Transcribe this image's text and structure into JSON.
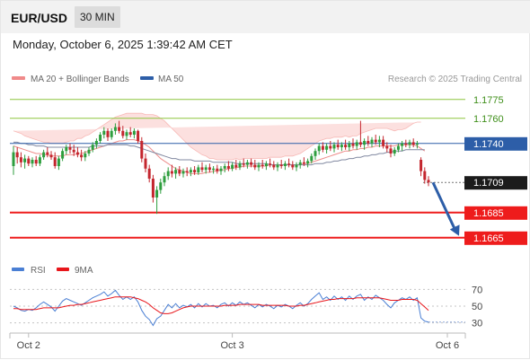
{
  "header": {
    "symbol": "EUR/USD",
    "interval": "30 MIN"
  },
  "timestamp": "Monday, October 6, 2025 1:39:42 AM CET",
  "legend": [
    {
      "label": "MA 20 + Bollinger Bands",
      "color": "#f08a8a"
    },
    {
      "label": "MA 50",
      "color": "#2d5ea8"
    }
  ],
  "copyright": "Research © 2025 Trading Central",
  "rsi_legend": [
    {
      "label": "RSI",
      "color": "#4a7fd4"
    },
    {
      "label": "9MA",
      "color": "#e8161b"
    }
  ],
  "colors": {
    "up": "#2e9e3e",
    "down": "#c4262e",
    "support": "#ee1c1c",
    "resistance": "#8dc63f",
    "current": "#2d5ea8",
    "arrow": "#2d5ea8"
  },
  "chart_data": {
    "type": "candlestick",
    "ylim": [
      1.1652,
      1.1782
    ],
    "levels": [
      {
        "value": 1.1775,
        "label": "1.1775",
        "kind": "resistance"
      },
      {
        "value": 1.176,
        "label": "1.1760",
        "kind": "resistance"
      },
      {
        "value": 1.174,
        "label": "1.1740",
        "kind": "pivot"
      },
      {
        "value": 1.1709,
        "label": "1.1709",
        "kind": "last"
      },
      {
        "value": 1.1685,
        "label": "1.1685",
        "kind": "support"
      },
      {
        "value": 1.1665,
        "label": "1.1665",
        "kind": "support"
      }
    ],
    "x_ticks": [
      {
        "label": "Oct 2",
        "index": 4
      },
      {
        "label": "Oct 3",
        "index": 58
      },
      {
        "label": "Oct 6",
        "index": 115
      }
    ],
    "candles": [
      [
        1.1722,
        1.1738,
        1.1715,
        1.1733
      ],
      [
        1.1733,
        1.1737,
        1.1724,
        1.1729
      ],
      [
        1.1729,
        1.1733,
        1.1721,
        1.1725
      ],
      [
        1.1725,
        1.1731,
        1.172,
        1.1728
      ],
      [
        1.1728,
        1.173,
        1.1722,
        1.1724
      ],
      [
        1.1724,
        1.1729,
        1.1721,
        1.1727
      ],
      [
        1.1727,
        1.173,
        1.1722,
        1.1724
      ],
      [
        1.1724,
        1.1731,
        1.1722,
        1.1729
      ],
      [
        1.1729,
        1.1735,
        1.1727,
        1.1733
      ],
      [
        1.1733,
        1.1737,
        1.1729,
        1.1731
      ],
      [
        1.1731,
        1.1734,
        1.1727,
        1.1729
      ],
      [
        1.1729,
        1.1733,
        1.172,
        1.1722
      ],
      [
        1.1722,
        1.173,
        1.1719,
        1.1728
      ],
      [
        1.1728,
        1.1736,
        1.1726,
        1.1734
      ],
      [
        1.1734,
        1.1739,
        1.1731,
        1.1737
      ],
      [
        1.1737,
        1.174,
        1.1732,
        1.1735
      ],
      [
        1.1735,
        1.1739,
        1.173,
        1.1733
      ],
      [
        1.1733,
        1.1737,
        1.1729,
        1.1731
      ],
      [
        1.1731,
        1.1735,
        1.1726,
        1.1729
      ],
      [
        1.1729,
        1.1734,
        1.1726,
        1.1732
      ],
      [
        1.1732,
        1.1737,
        1.173,
        1.1735
      ],
      [
        1.1735,
        1.1741,
        1.1733,
        1.1739
      ],
      [
        1.1739,
        1.1744,
        1.1736,
        1.1742
      ],
      [
        1.1742,
        1.1749,
        1.174,
        1.1747
      ],
      [
        1.1747,
        1.1753,
        1.1744,
        1.175
      ],
      [
        1.175,
        1.1752,
        1.1742,
        1.1745
      ],
      [
        1.1745,
        1.1752,
        1.1743,
        1.175
      ],
      [
        1.175,
        1.1756,
        1.1747,
        1.1753
      ],
      [
        1.1753,
        1.1758,
        1.1748,
        1.175
      ],
      [
        1.175,
        1.1754,
        1.1744,
        1.1746
      ],
      [
        1.1746,
        1.1751,
        1.1743,
        1.1749
      ],
      [
        1.1749,
        1.1753,
        1.1745,
        1.1747
      ],
      [
        1.1747,
        1.1752,
        1.1744,
        1.175
      ],
      [
        1.175,
        1.1751,
        1.174,
        1.1742
      ],
      [
        1.1742,
        1.1745,
        1.1725,
        1.1728
      ],
      [
        1.1728,
        1.1732,
        1.1717,
        1.172
      ],
      [
        1.172,
        1.1723,
        1.1709,
        1.1712
      ],
      [
        1.1712,
        1.1715,
        1.1693,
        1.1697
      ],
      [
        1.1697,
        1.1706,
        1.1684,
        1.1703
      ],
      [
        1.1703,
        1.1712,
        1.17,
        1.1709
      ],
      [
        1.1709,
        1.1717,
        1.1706,
        1.1714
      ],
      [
        1.1714,
        1.1721,
        1.1711,
        1.1718
      ],
      [
        1.1718,
        1.1723,
        1.1713,
        1.1716
      ],
      [
        1.1716,
        1.1721,
        1.1712,
        1.1719
      ],
      [
        1.1719,
        1.1722,
        1.1714,
        1.1716
      ],
      [
        1.1716,
        1.172,
        1.1713,
        1.1718
      ],
      [
        1.1718,
        1.1721,
        1.1714,
        1.1717
      ],
      [
        1.1717,
        1.1721,
        1.1714,
        1.1719
      ],
      [
        1.1719,
        1.1722,
        1.1715,
        1.1717
      ],
      [
        1.1717,
        1.1723,
        1.1715,
        1.1721
      ],
      [
        1.1721,
        1.1725,
        1.1717,
        1.1719
      ],
      [
        1.1719,
        1.1723,
        1.1716,
        1.1721
      ],
      [
        1.1721,
        1.1724,
        1.1717,
        1.1719
      ],
      [
        1.1719,
        1.1722,
        1.1716,
        1.172
      ],
      [
        1.172,
        1.1723,
        1.1716,
        1.1718
      ],
      [
        1.1718,
        1.1722,
        1.1715,
        1.172
      ],
      [
        1.172,
        1.1724,
        1.1717,
        1.1722
      ],
      [
        1.1722,
        1.1726,
        1.1718,
        1.172
      ],
      [
        1.172,
        1.1725,
        1.1718,
        1.1723
      ],
      [
        1.1723,
        1.1727,
        1.1719,
        1.1721
      ],
      [
        1.1721,
        1.1726,
        1.1719,
        1.1724
      ],
      [
        1.1724,
        1.1728,
        1.1721,
        1.1723
      ],
      [
        1.1723,
        1.1727,
        1.172,
        1.1725
      ],
      [
        1.1725,
        1.1728,
        1.1721,
        1.1723
      ],
      [
        1.1723,
        1.1727,
        1.1719,
        1.1721
      ],
      [
        1.1721,
        1.1725,
        1.1718,
        1.1723
      ],
      [
        1.1723,
        1.1727,
        1.172,
        1.1722
      ],
      [
        1.1722,
        1.1726,
        1.1719,
        1.1724
      ],
      [
        1.1724,
        1.1728,
        1.1721,
        1.1723
      ],
      [
        1.1723,
        1.1726,
        1.1719,
        1.1721
      ],
      [
        1.1721,
        1.1725,
        1.1718,
        1.1723
      ],
      [
        1.1723,
        1.1727,
        1.172,
        1.1722
      ],
      [
        1.1722,
        1.1726,
        1.1719,
        1.1724
      ],
      [
        1.1724,
        1.1728,
        1.1721,
        1.1723
      ],
      [
        1.1723,
        1.1726,
        1.1719,
        1.1721
      ],
      [
        1.1721,
        1.1725,
        1.1718,
        1.1723
      ],
      [
        1.1723,
        1.1727,
        1.172,
        1.1725
      ],
      [
        1.1725,
        1.1729,
        1.1722,
        1.1724
      ],
      [
        1.1724,
        1.1728,
        1.1721,
        1.1726
      ],
      [
        1.1726,
        1.1732,
        1.1724,
        1.173
      ],
      [
        1.173,
        1.1736,
        1.1727,
        1.1734
      ],
      [
        1.1734,
        1.174,
        1.1731,
        1.1738
      ],
      [
        1.1738,
        1.1741,
        1.1733,
        1.1735
      ],
      [
        1.1735,
        1.174,
        1.1732,
        1.1738
      ],
      [
        1.1738,
        1.1742,
        1.1734,
        1.1736
      ],
      [
        1.1736,
        1.1741,
        1.1733,
        1.1739
      ],
      [
        1.1739,
        1.1743,
        1.1735,
        1.1737
      ],
      [
        1.1737,
        1.1741,
        1.1734,
        1.1739
      ],
      [
        1.1739,
        1.1743,
        1.1735,
        1.1737
      ],
      [
        1.1737,
        1.1742,
        1.1734,
        1.174
      ],
      [
        1.174,
        1.1744,
        1.1736,
        1.1738
      ],
      [
        1.1738,
        1.1743,
        1.1735,
        1.1741
      ],
      [
        1.1741,
        1.1758,
        1.1737,
        1.1739
      ],
      [
        1.1739,
        1.1744,
        1.1735,
        1.1742
      ],
      [
        1.1742,
        1.1746,
        1.1738,
        1.174
      ],
      [
        1.174,
        1.1745,
        1.1737,
        1.1743
      ],
      [
        1.1743,
        1.1747,
        1.1739,
        1.1741
      ],
      [
        1.1741,
        1.1746,
        1.1737,
        1.1743
      ],
      [
        1.1743,
        1.1746,
        1.1736,
        1.1738
      ],
      [
        1.1738,
        1.1741,
        1.1733,
        1.1736
      ],
      [
        1.1736,
        1.1739,
        1.1729,
        1.1732
      ],
      [
        1.1732,
        1.1737,
        1.173,
        1.1735
      ],
      [
        1.1735,
        1.174,
        1.1733,
        1.1738
      ],
      [
        1.1738,
        1.1742,
        1.1734,
        1.174
      ],
      [
        1.174,
        1.1743,
        1.1737,
        1.1739
      ],
      [
        1.1739,
        1.1743,
        1.1736,
        1.1741
      ],
      [
        1.1741,
        1.1744,
        1.1737,
        1.1739
      ],
      [
        1.1739,
        1.1742,
        1.1736,
        1.174
      ],
      [
        1.1727,
        1.1729,
        1.1714,
        1.1718
      ],
      [
        1.1718,
        1.1721,
        1.1708,
        1.1711
      ],
      [
        1.1711,
        1.1714,
        1.1706,
        1.1709
      ]
    ],
    "ma20": [
      1.1738,
      1.1737,
      1.1736,
      1.1735,
      1.1734,
      1.1733,
      1.1732,
      1.1732,
      1.1731,
      1.1731,
      1.173,
      1.173,
      1.173,
      1.173,
      1.1731,
      1.1731,
      1.1731,
      1.1732,
      1.1732,
      1.1733,
      1.1734,
      1.1735,
      1.1736,
      1.1737,
      1.1738,
      1.1739,
      1.174,
      1.1741,
      1.1742,
      1.1742,
      1.1743,
      1.1743,
      1.1743,
      1.1742,
      1.1741,
      1.1739,
      1.1737,
      1.1734,
      1.1731,
      1.1728,
      1.1726,
      1.1724,
      1.1722,
      1.172,
      1.1719,
      1.1718,
      1.1717,
      1.1716,
      1.1716,
      1.1716,
      1.1716,
      1.1717,
      1.1717,
      1.1718,
      1.1718,
      1.1719,
      1.1719,
      1.172,
      1.172,
      1.1721,
      1.1721,
      1.1722,
      1.1722,
      1.1722,
      1.1722,
      1.1722,
      1.1722,
      1.1722,
      1.1723,
      1.1723,
      1.1723,
      1.1723,
      1.1723,
      1.1723,
      1.1723,
      1.1723,
      1.1723,
      1.1724,
      1.1724,
      1.1725,
      1.1726,
      1.1727,
      1.1728,
      1.1729,
      1.173,
      1.1731,
      1.1732,
      1.1733,
      1.1734,
      1.1734,
      1.1735,
      1.1735,
      1.1736,
      1.1736,
      1.1737,
      1.1737,
      1.1738,
      1.1738,
      1.1738,
      1.1738,
      1.1738,
      1.1738,
      1.1739,
      1.1739,
      1.1739,
      1.1739,
      1.1739,
      1.1738,
      1.1736,
      1.1734
    ],
    "ma50": [
      1.1741,
      1.1741,
      1.174,
      1.174,
      1.1739,
      1.1739,
      1.1738,
      1.1738,
      1.1738,
      1.1737,
      1.1737,
      1.1737,
      1.1737,
      1.1737,
      1.1737,
      1.1737,
      1.1737,
      1.1737,
      1.1737,
      1.1737,
      1.1737,
      1.1738,
      1.1738,
      1.1738,
      1.1738,
      1.1739,
      1.1739,
      1.1739,
      1.1739,
      1.1739,
      1.1739,
      1.1738,
      1.1738,
      1.1737,
      1.1736,
      1.1735,
      1.1734,
      1.1733,
      1.1732,
      1.1731,
      1.173,
      1.1729,
      1.1728,
      1.1728,
      1.1727,
      1.1727,
      1.1727,
      1.1727,
      1.1726,
      1.1726,
      1.1726,
      1.1726,
      1.1726,
      1.1725,
      1.1725,
      1.1725,
      1.1725,
      1.1725,
      1.1725,
      1.1724,
      1.1724,
      1.1724,
      1.1724,
      1.1724,
      1.1724,
      1.1724,
      1.1724,
      1.1724,
      1.1723,
      1.1723,
      1.1723,
      1.1723,
      1.1723,
      1.1723,
      1.1723,
      1.1723,
      1.1723,
      1.1723,
      1.1723,
      1.1723,
      1.1724,
      1.1724,
      1.1724,
      1.1725,
      1.1725,
      1.1726,
      1.1726,
      1.1727,
      1.1727,
      1.1728,
      1.1728,
      1.1729,
      1.1729,
      1.173,
      1.173,
      1.1731,
      1.1731,
      1.1732,
      1.1732,
      1.1733,
      1.1733,
      1.1734,
      1.1734,
      1.1734,
      1.1735,
      1.1735,
      1.1735,
      1.1735,
      1.1735,
      1.1735
    ],
    "bb_width": [
      0.0012,
      0.0012,
      0.0012,
      0.0011,
      0.0011,
      0.0011,
      0.0011,
      0.001,
      0.001,
      0.001,
      0.001,
      0.001,
      0.001,
      0.001,
      0.001,
      0.0011,
      0.0011,
      0.0012,
      0.0012,
      0.0013,
      0.0013,
      0.0014,
      0.0015,
      0.0016,
      0.0017,
      0.0018,
      0.0019,
      0.002,
      0.002,
      0.0021,
      0.0021,
      0.0021,
      0.0021,
      0.0022,
      0.0023,
      0.0024,
      0.0026,
      0.0029,
      0.0031,
      0.0032,
      0.0032,
      0.0031,
      0.003,
      0.0029,
      0.0027,
      0.0025,
      0.0023,
      0.0021,
      0.0019,
      0.0017,
      0.0015,
      0.0013,
      0.0011,
      0.001,
      0.0009,
      0.0008,
      0.0008,
      0.0007,
      0.0007,
      0.0007,
      0.0006,
      0.0006,
      0.0006,
      0.0006,
      0.0006,
      0.0006,
      0.0006,
      0.0006,
      0.0006,
      0.0006,
      0.0006,
      0.0006,
      0.0007,
      0.0007,
      0.0007,
      0.0008,
      0.0009,
      0.001,
      0.0012,
      0.0013,
      0.0014,
      0.0015,
      0.0015,
      0.0015,
      0.0014,
      0.0014,
      0.0013,
      0.0012,
      0.0012,
      0.0011,
      0.0011,
      0.0011,
      0.0012,
      0.0013,
      0.0013,
      0.0014,
      0.0014,
      0.0014,
      0.0014,
      0.0014,
      0.0013,
      0.0012,
      0.0012,
      0.0012,
      0.0013,
      0.0015,
      0.0017,
      0.0019,
      0.0021
    ],
    "rsi_ylim": [
      20,
      80
    ],
    "rsi_ticks": [
      70,
      50,
      30
    ],
    "rsi": [
      50,
      48,
      45,
      44,
      46,
      45,
      48,
      52,
      55,
      52,
      49,
      44,
      50,
      56,
      59,
      57,
      55,
      53,
      51,
      54,
      57,
      60,
      62,
      64,
      67,
      62,
      65,
      69,
      63,
      58,
      61,
      58,
      61,
      55,
      45,
      38,
      34,
      27,
      35,
      38,
      45,
      52,
      48,
      53,
      48,
      51,
      49,
      52,
      48,
      53,
      49,
      53,
      50,
      51,
      48,
      52,
      54,
      50,
      54,
      51,
      55,
      52,
      54,
      51,
      48,
      52,
      49,
      52,
      50,
      47,
      51,
      49,
      52,
      50,
      47,
      51,
      54,
      50,
      53,
      58,
      62,
      66,
      58,
      61,
      57,
      62,
      58,
      61,
      57,
      62,
      58,
      62,
      64,
      57,
      61,
      58,
      63,
      60,
      57,
      52,
      48,
      54,
      57,
      60,
      58,
      61,
      57,
      60,
      36,
      32,
      31
    ],
    "rsi_ma": [
      47,
      47,
      46,
      46,
      46,
      46,
      46,
      47,
      48,
      48,
      48,
      48,
      48,
      49,
      50,
      51,
      51,
      52,
      52,
      53,
      54,
      55,
      56,
      57,
      58,
      59,
      60,
      61,
      61,
      61,
      61,
      61,
      60,
      59,
      57,
      55,
      52,
      48,
      45,
      42,
      41,
      41,
      42,
      44,
      46,
      48,
      49,
      50,
      50,
      50,
      50,
      50,
      50,
      50,
      50,
      50,
      51,
      51,
      51,
      51,
      52,
      52,
      52,
      52,
      52,
      52,
      51,
      51,
      51,
      51,
      51,
      51,
      51,
      50,
      50,
      50,
      51,
      51,
      52,
      53,
      54,
      55,
      56,
      57,
      58,
      58,
      59,
      59,
      59,
      59,
      59,
      60,
      60,
      60,
      60,
      60,
      60,
      60,
      59,
      58,
      57,
      57,
      57,
      58,
      58,
      58,
      58,
      57,
      53,
      49,
      45
    ]
  }
}
